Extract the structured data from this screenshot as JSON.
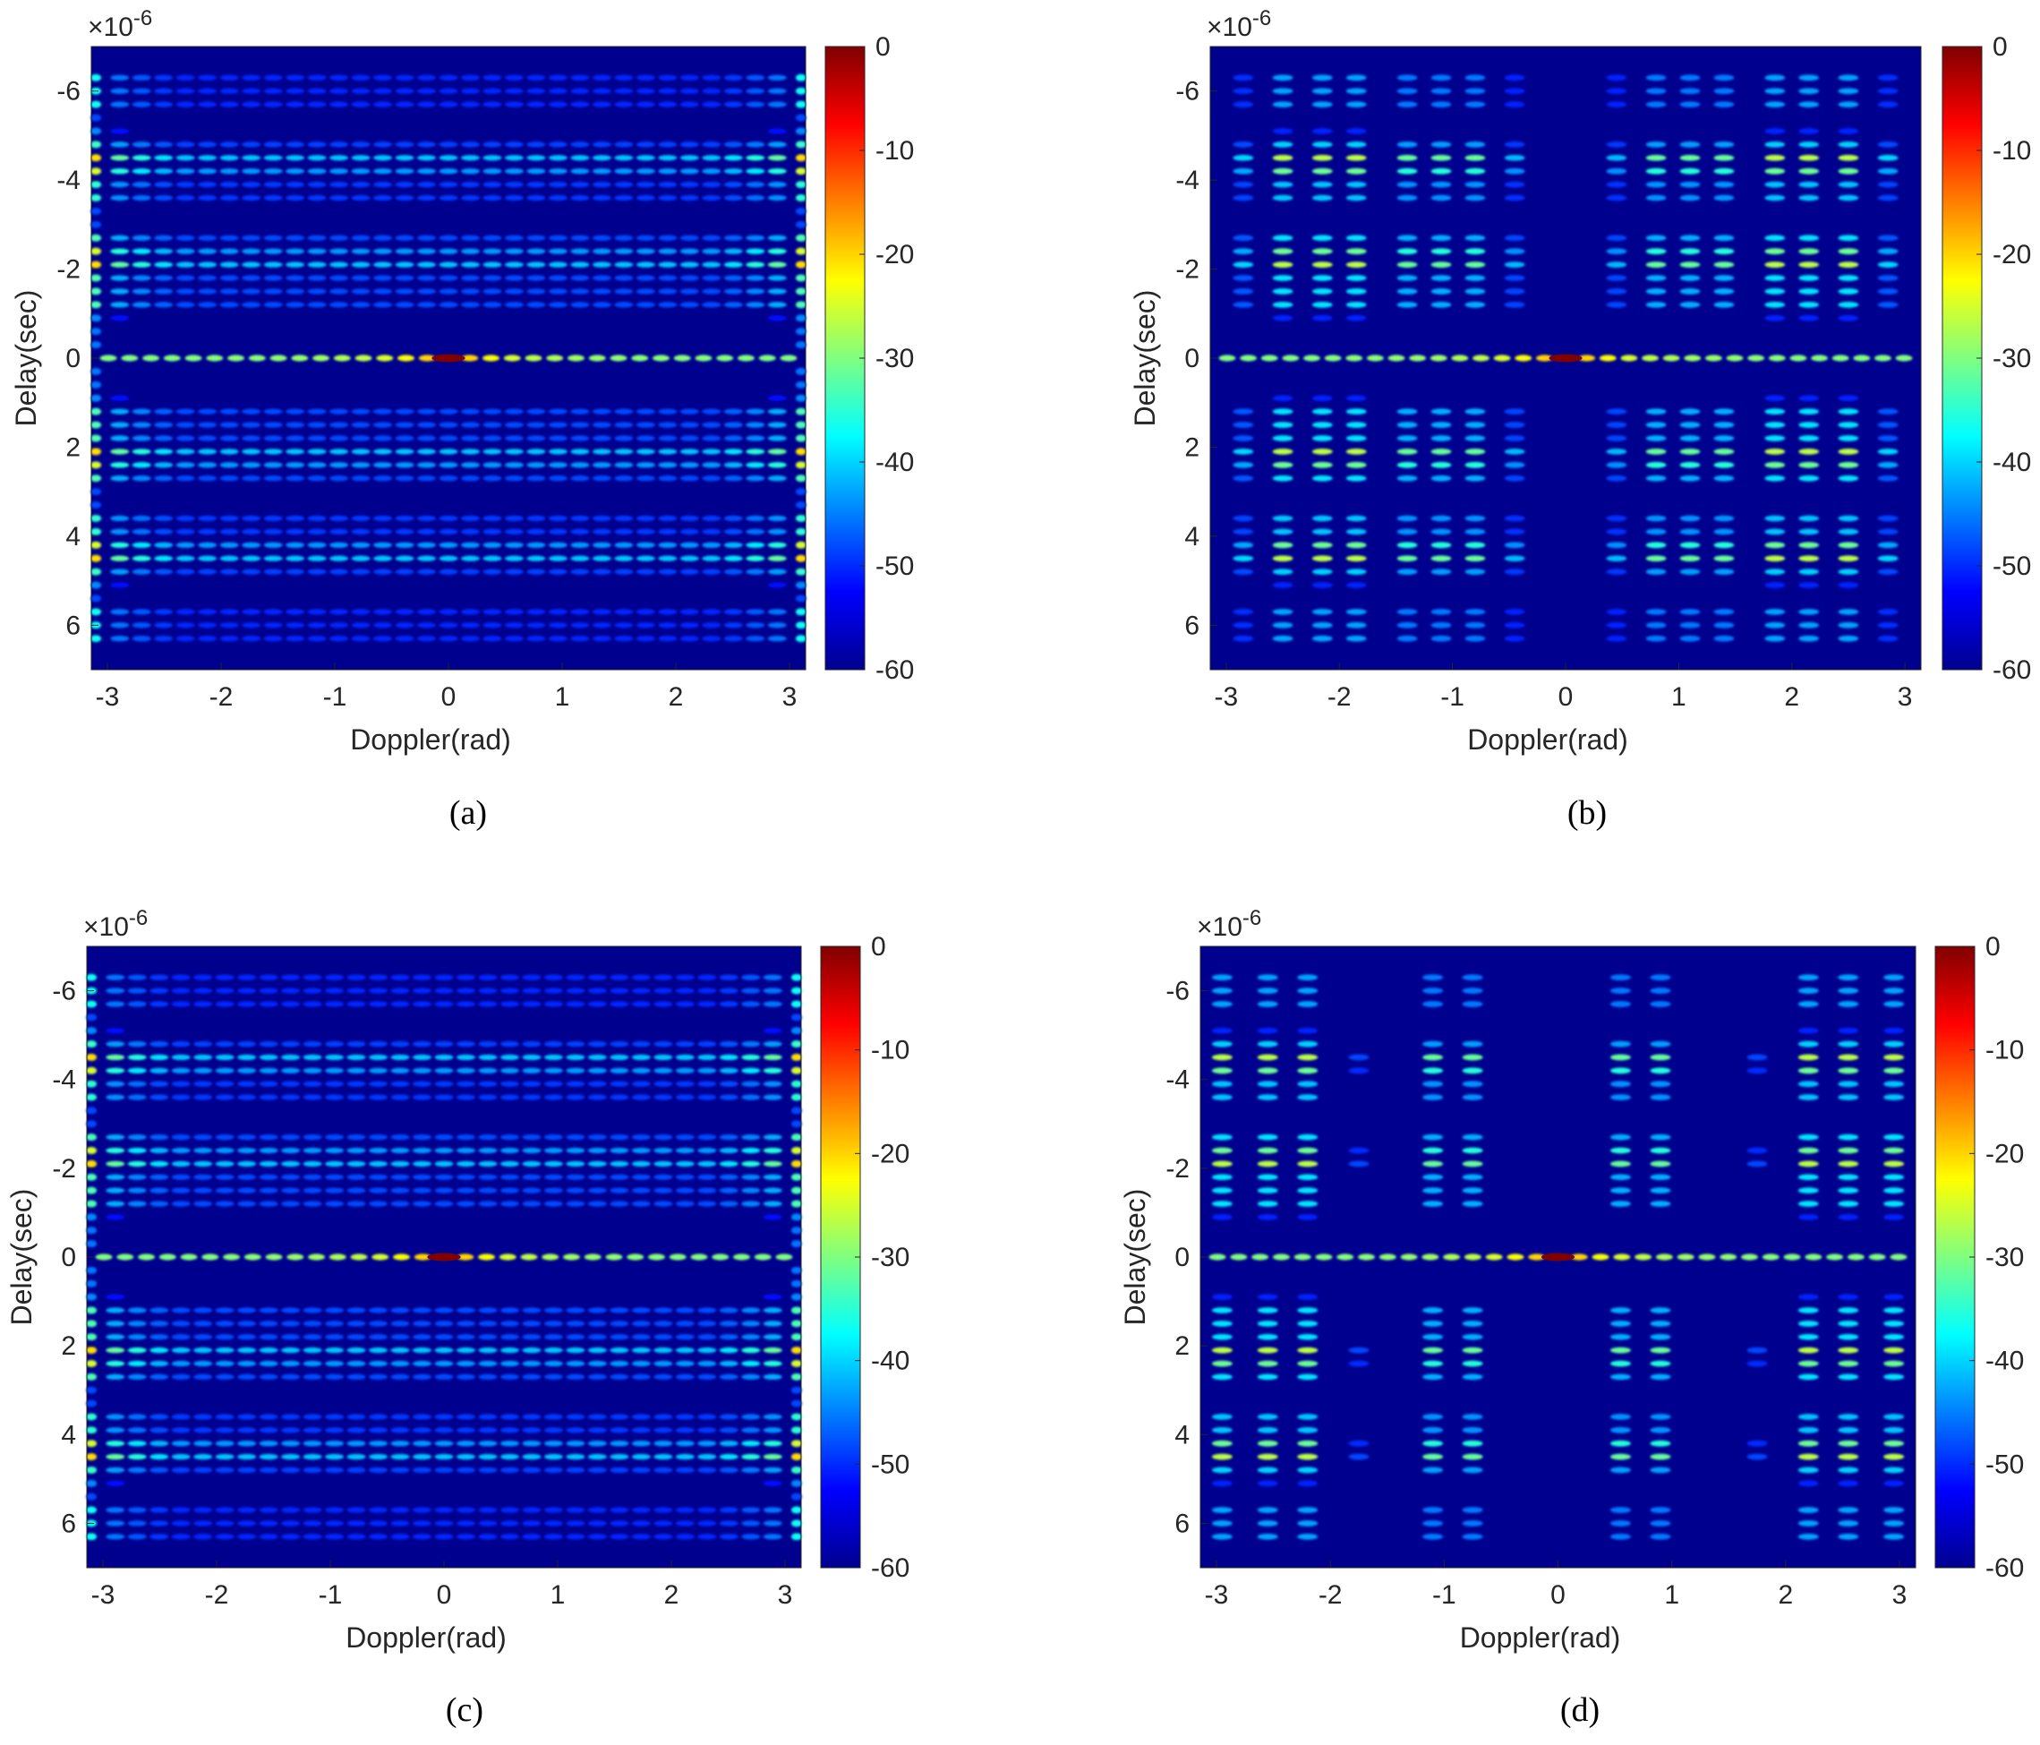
{
  "chart_data": [
    {
      "type": "heatmap",
      "caption": "(a)",
      "xlabel": "Doppler(rad)",
      "ylabel": "Delay(sec)",
      "y_exponent_label": "×10",
      "y_exponent": "-6",
      "xlim": [
        -3.1416,
        3.1416
      ],
      "ylim": [
        -7,
        7
      ],
      "y_reversed": true,
      "xticks": [
        -3,
        -2,
        -1,
        0,
        1,
        2,
        3
      ],
      "xtick_labels": [
        "-3",
        "-2",
        "-1",
        "0",
        "1",
        "2",
        "3"
      ],
      "yticks": [
        -6,
        -4,
        -2,
        0,
        2,
        4,
        6
      ],
      "ytick_labels": [
        "-6",
        "-4",
        "-2",
        "0",
        "2",
        "4",
        "6"
      ],
      "colorbar": {
        "min": -60,
        "max": 0,
        "ticks": [
          0,
          -10,
          -20,
          -30,
          -40,
          -50,
          -60
        ],
        "tick_labels": [
          "0",
          "-10",
          "-20",
          "-30",
          "-40",
          "-50",
          "-60"
        ],
        "colormap": "jet"
      },
      "peak": {
        "doppler": 0,
        "delay": 0,
        "level_db": 0
      },
      "pattern": "uniform",
      "doppler_lobes": 31,
      "strong_delay_rows": [
        -4.4,
        4.4,
        -2.2,
        2.2,
        0
      ],
      "edge_enhanced": true
    },
    {
      "type": "heatmap",
      "caption": "(b)",
      "xlabel": "Doppler(rad)",
      "ylabel": "Delay(sec)",
      "y_exponent_label": "×10",
      "y_exponent": "-6",
      "xlim": [
        -3.1416,
        3.1416
      ],
      "ylim": [
        -7,
        7
      ],
      "y_reversed": true,
      "xticks": [
        -3,
        -2,
        -1,
        0,
        1,
        2,
        3
      ],
      "xtick_labels": [
        "-3",
        "-2",
        "-1",
        "0",
        "1",
        "2",
        "3"
      ],
      "yticks": [
        -6,
        -4,
        -2,
        0,
        2,
        4,
        6
      ],
      "ytick_labels": [
        "-6",
        "-4",
        "-2",
        "0",
        "2",
        "4",
        "6"
      ],
      "colorbar": {
        "min": -60,
        "max": 0,
        "ticks": [
          0,
          -10,
          -20,
          -30,
          -40,
          -50,
          -60
        ],
        "tick_labels": [
          "0",
          "-10",
          "-20",
          "-30",
          "-40",
          "-50",
          "-60"
        ],
        "colormap": "jet"
      },
      "peak": {
        "doppler": 0,
        "delay": 0,
        "level_db": 0
      },
      "pattern": "clustered",
      "column_clusters": [
        {
          "center": -2.1,
          "columns": [
            -2.5,
            -2.15,
            -1.85
          ],
          "strength": 1.0
        },
        {
          "center": -1.1,
          "columns": [
            -1.4,
            -1.1,
            -0.8
          ],
          "strength": 0.85
        },
        {
          "center": -0.45,
          "columns": [
            -0.45
          ],
          "strength": 0.55
        },
        {
          "center": 0.45,
          "columns": [
            0.45
          ],
          "strength": 0.55
        },
        {
          "center": 1.1,
          "columns": [
            0.8,
            1.1,
            1.4
          ],
          "strength": 0.85
        },
        {
          "center": 2.1,
          "columns": [
            1.85,
            2.15,
            2.5
          ],
          "strength": 1.0
        },
        {
          "center": 2.9,
          "columns": [
            2.85
          ],
          "strength": 0.6
        },
        {
          "center": -2.9,
          "columns": [
            -2.85
          ],
          "strength": 0.6
        }
      ],
      "strong_delay_rows": [
        -4.4,
        4.4,
        -2.2,
        2.2,
        0
      ]
    },
    {
      "type": "heatmap",
      "caption": "(c)",
      "xlabel": "Doppler(rad)",
      "ylabel": "Delay(sec)",
      "y_exponent_label": "×10",
      "y_exponent": "-6",
      "xlim": [
        -3.1416,
        3.1416
      ],
      "ylim": [
        -7,
        7
      ],
      "y_reversed": true,
      "xticks": [
        -3,
        -2,
        -1,
        0,
        1,
        2,
        3
      ],
      "xtick_labels": [
        "-3",
        "-2",
        "-1",
        "0",
        "1",
        "2",
        "3"
      ],
      "yticks": [
        -6,
        -4,
        -2,
        0,
        2,
        4,
        6
      ],
      "ytick_labels": [
        "-6",
        "-4",
        "-2",
        "0",
        "2",
        "4",
        "6"
      ],
      "colorbar": {
        "min": -60,
        "max": 0,
        "ticks": [
          0,
          -10,
          -20,
          -30,
          -40,
          -50,
          -60
        ],
        "tick_labels": [
          "0",
          "-10",
          "-20",
          "-30",
          "-40",
          "-50",
          "-60"
        ],
        "colormap": "jet"
      },
      "peak": {
        "doppler": 0,
        "delay": 0,
        "level_db": 0
      },
      "pattern": "uniform",
      "doppler_lobes": 31,
      "strong_delay_rows": [
        -4.4,
        4.4,
        -2.2,
        2.2,
        0
      ],
      "edge_enhanced": true
    },
    {
      "type": "heatmap",
      "caption": "(d)",
      "xlabel": "Doppler(rad)",
      "ylabel": "Delay(sec)",
      "y_exponent_label": "×10",
      "y_exponent": "-6",
      "xlim": [
        -3.1416,
        3.1416
      ],
      "ylim": [
        -7,
        7
      ],
      "y_reversed": true,
      "xticks": [
        -3,
        -2,
        -1,
        0,
        1,
        2,
        3
      ],
      "xtick_labels": [
        "-3",
        "-2",
        "-1",
        "0",
        "1",
        "2",
        "3"
      ],
      "yticks": [
        -6,
        -4,
        -2,
        0,
        2,
        4,
        6
      ],
      "ytick_labels": [
        "-6",
        "-4",
        "-2",
        "0",
        "2",
        "4",
        "6"
      ],
      "colorbar": {
        "min": -60,
        "max": 0,
        "ticks": [
          0,
          -10,
          -20,
          -30,
          -40,
          -50,
          -60
        ],
        "tick_labels": [
          "0",
          "-10",
          "-20",
          "-30",
          "-40",
          "-50",
          "-60"
        ],
        "colormap": "jet"
      },
      "peak": {
        "doppler": 0,
        "delay": 0,
        "level_db": 0
      },
      "pattern": "clustered",
      "column_clusters": [
        {
          "center": -2.55,
          "columns": [
            -2.95,
            -2.55,
            -2.2
          ],
          "strength": 1.0
        },
        {
          "center": -1.0,
          "columns": [
            -1.1,
            -0.75
          ],
          "strength": 0.85
        },
        {
          "center": 0.75,
          "columns": [
            0.55,
            0.9
          ],
          "strength": 0.85
        },
        {
          "center": 2.55,
          "columns": [
            2.2,
            2.55,
            2.95
          ],
          "strength": 1.0
        },
        {
          "center": -1.75,
          "columns": [
            -1.75
          ],
          "strength": 0.35
        },
        {
          "center": 1.75,
          "columns": [
            1.75
          ],
          "strength": 0.35
        }
      ],
      "strong_delay_rows": [
        -4.4,
        4.4,
        -2.2,
        2.2,
        0
      ]
    }
  ]
}
